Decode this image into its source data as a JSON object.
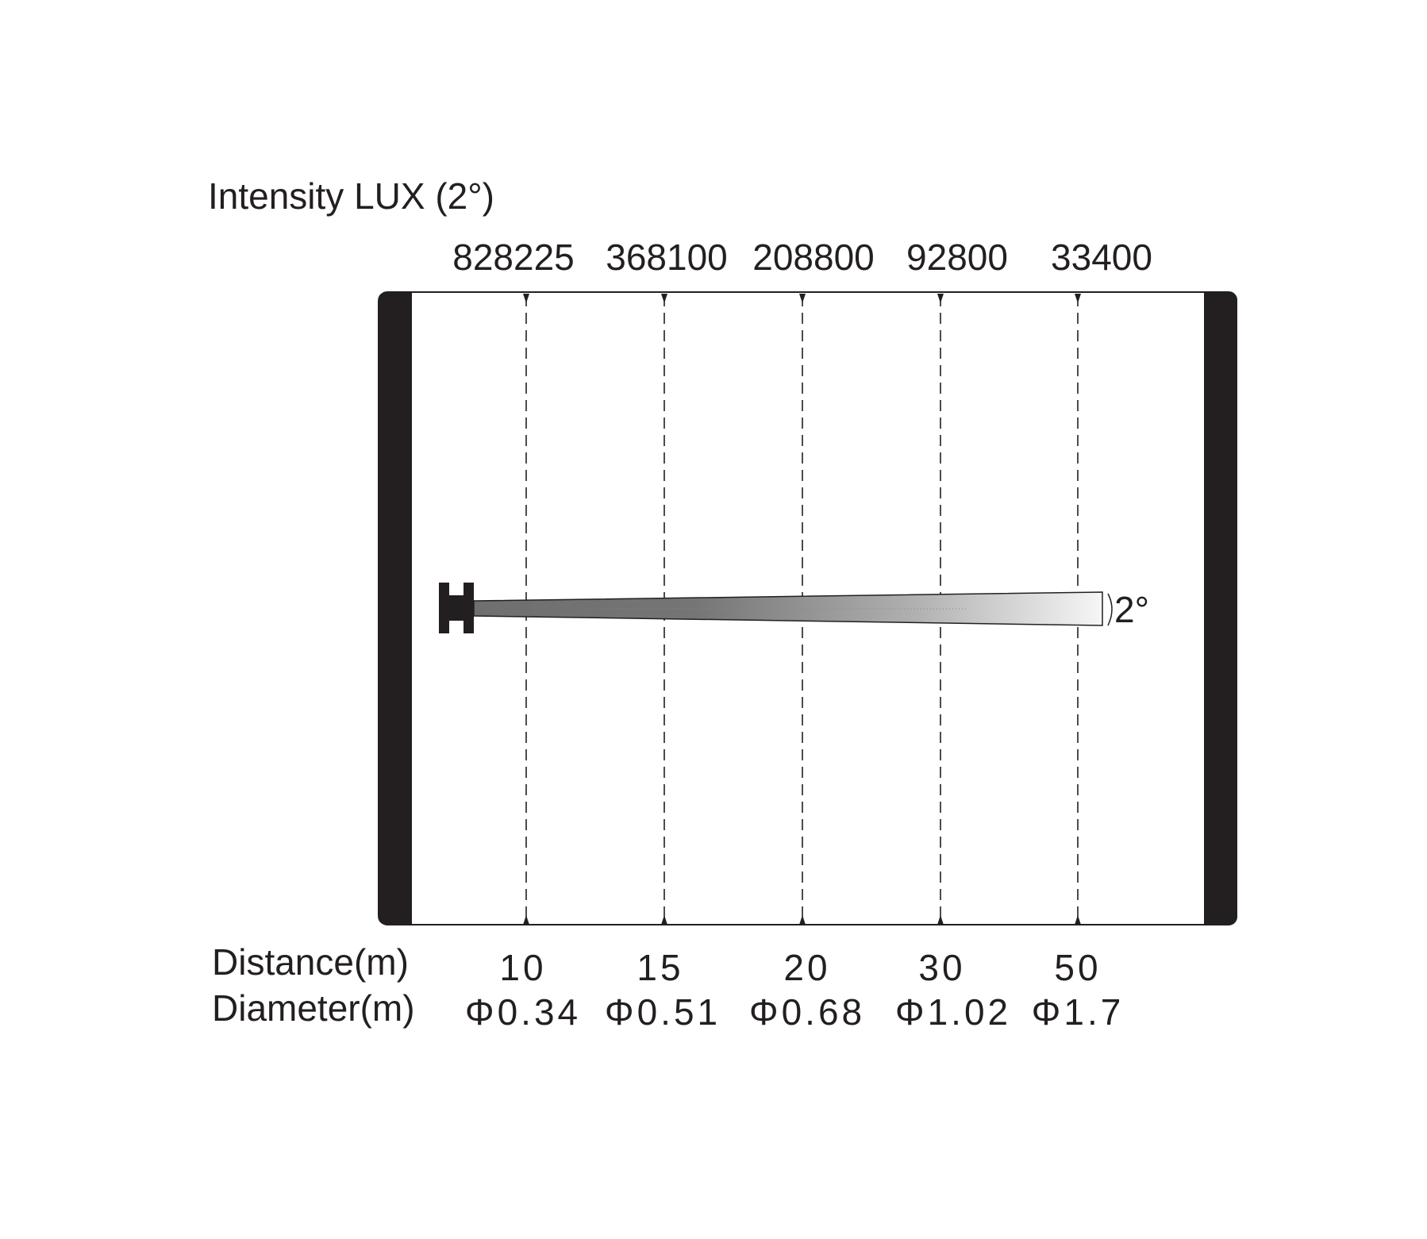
{
  "title": "Intensity LUX (2°)",
  "beam_angle_label": "2°",
  "distance_label": "Distance(m)",
  "diameter_label": "Diameter(m)",
  "columns": [
    {
      "lux": "828225",
      "distance": "10",
      "diameter": "Φ0.34"
    },
    {
      "lux": "368100",
      "distance": "15",
      "diameter": "Φ0.51"
    },
    {
      "lux": "208800",
      "distance": "20",
      "diameter": "Φ0.68"
    },
    {
      "lux": "92800",
      "distance": "30",
      "diameter": "Φ1.02"
    },
    {
      "lux": "33400",
      "distance": "50",
      "diameter": "Φ1.7"
    }
  ],
  "colors": {
    "frame": "#231f20",
    "beam_dark": "#6f6f6f",
    "beam_light": "#f4f4f4"
  }
}
